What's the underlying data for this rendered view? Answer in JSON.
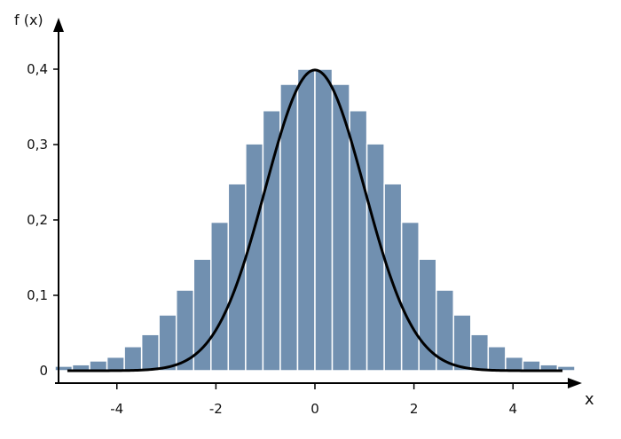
{
  "chart_data": {
    "type": "bar",
    "title": "",
    "ylabel": "f (x)",
    "xlabel": "x",
    "xlim": [
      -5.25,
      5.25
    ],
    "ylim": [
      0,
      0.4
    ],
    "x_ticks": [
      -4,
      -2,
      0,
      2,
      4
    ],
    "x_tick_labels": [
      "-4",
      "-2",
      "0",
      "2",
      "4"
    ],
    "y_ticks": [
      0,
      0.1,
      0.2,
      0.3,
      0.4
    ],
    "y_tick_labels": [
      "0",
      "0,1",
      "0,2",
      "0,3",
      "0,4"
    ],
    "bin_width": 0.35,
    "bin_centers": [
      -5.075,
      -4.725,
      -4.375,
      -4.025,
      -3.675,
      -3.325,
      -2.975,
      -2.625,
      -2.275,
      -1.925,
      -1.575,
      -1.225,
      -0.875,
      -0.525,
      -0.175,
      0.175,
      0.525,
      0.875,
      1.225,
      1.575,
      1.925,
      2.275,
      2.625,
      2.975,
      3.325,
      3.675,
      4.025,
      4.375,
      4.725,
      5.075
    ],
    "values": [
      0.006,
      0.008,
      0.013,
      0.018,
      0.032,
      0.048,
      0.074,
      0.107,
      0.148,
      0.197,
      0.248,
      0.301,
      0.345,
      0.38,
      0.4,
      0.4,
      0.38,
      0.345,
      0.301,
      0.248,
      0.197,
      0.148,
      0.107,
      0.074,
      0.048,
      0.032,
      0.018,
      0.013,
      0.008,
      0.006
    ],
    "curve": {
      "function": "normal_pdf",
      "mean": 0,
      "std": 1,
      "x_range": [
        -5,
        5
      ]
    },
    "grid": false,
    "legend": "none",
    "colors": {
      "bar_fill": "#7190b0",
      "bar_edge": "#ffffff",
      "curve": "#000000",
      "axis": "#000000"
    }
  }
}
